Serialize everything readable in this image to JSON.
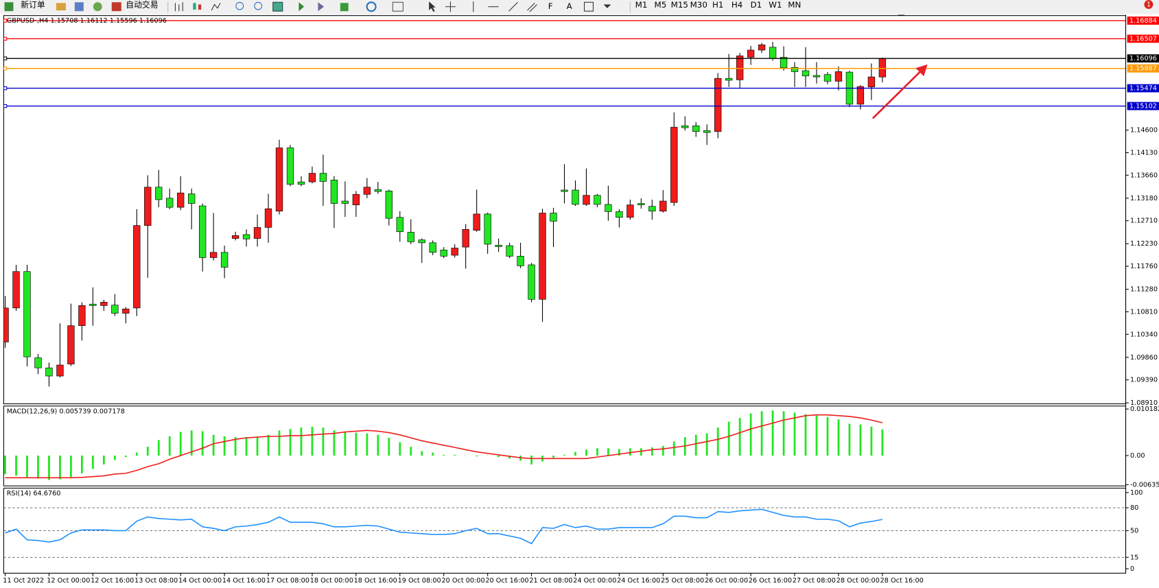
{
  "toolbar": {
    "new_order": "新订单",
    "auto_trading": "自动交易",
    "timeframes": [
      "M1",
      "M5",
      "M15",
      "M30",
      "H1",
      "H4",
      "D1",
      "W1",
      "MN"
    ],
    "badge": "1"
  },
  "chart_data": [
    {
      "type": "candlestick",
      "title": "GBPUSD-,H4  1.15708 1.16112 1.15596 1.16096",
      "up_color": "#ee1c1c",
      "down_color": "#22e622",
      "wick_color": "#000000",
      "ylim": [
        1.0889,
        1.1699
      ],
      "yticks": [
        {
          "value": 1.0891,
          "label": "1.08910"
        },
        {
          "value": 1.0939,
          "label": "1.09390"
        },
        {
          "value": 1.0986,
          "label": "1.09860"
        },
        {
          "value": 1.1034,
          "label": "1.10340"
        },
        {
          "value": 1.1081,
          "label": "1.10810"
        },
        {
          "value": 1.1128,
          "label": "1.11280"
        },
        {
          "value": 1.1176,
          "label": "1.11760"
        },
        {
          "value": 1.1223,
          "label": "1.12230"
        },
        {
          "value": 1.1271,
          "label": "1.12710"
        },
        {
          "value": 1.1318,
          "label": "1.13180"
        },
        {
          "value": 1.1366,
          "label": "1.13660"
        },
        {
          "value": 1.1413,
          "label": "1.14130"
        },
        {
          "value": 1.146,
          "label": "1.14600"
        }
      ],
      "levels": [
        {
          "value": 1.16884,
          "color": "#ff0000"
        },
        {
          "value": 1.16507,
          "color": "#ff0000"
        },
        {
          "value": 1.16096,
          "color": "#000000"
        },
        {
          "value": 1.15887,
          "color": "#ff9900"
        },
        {
          "value": 1.15474,
          "color": "#0000cc"
        },
        {
          "value": 1.15102,
          "color": "#0000cc"
        }
      ],
      "categories": [
        "11 Oct 2022",
        null,
        null,
        null,
        "12 Oct 00:00",
        null,
        null,
        null,
        "12 Oct 16:00",
        null,
        null,
        null,
        "13 Oct 08:00",
        null,
        null,
        null,
        "14 Oct 00:00",
        null,
        null,
        null,
        "14 Oct 16:00",
        null,
        null,
        null,
        "17 Oct 08:00",
        null,
        null,
        null,
        "18 Oct 00:00",
        null,
        null,
        null,
        "18 Oct 16:00",
        null,
        null,
        null,
        "19 Oct 08:00",
        null,
        null,
        null,
        "20 Oct 00:00",
        null,
        null,
        null,
        "20 Oct 16:00",
        null,
        null,
        null,
        "21 Oct 08:00",
        null,
        null,
        null,
        "24 Oct 00:00",
        null,
        null,
        null,
        "24 Oct 16:00",
        null,
        null,
        null,
        "25 Oct 08:00",
        null,
        null,
        null,
        "26 Oct 00:00",
        null,
        null,
        null,
        "26 Oct 16:00",
        null,
        null,
        null,
        "27 Oct 08:00",
        null,
        null,
        null,
        "28 Oct 00:00",
        null,
        null,
        null,
        "28 Oct 16:00"
      ],
      "open": [
        1.1018,
        1.1089,
        1.1165,
        1.0985,
        1.0964,
        1.0947,
        1.0972,
        1.1052,
        1.1097,
        1.1094,
        1.1095,
        1.1078,
        1.1089,
        1.1261,
        1.1341,
        1.1318,
        1.1299,
        1.1327,
        1.1302,
        1.1194,
        1.1205,
        1.1234,
        1.1242,
        1.1234,
        1.1257,
        1.1291,
        1.1423,
        1.1352,
        1.1352,
        1.137,
        1.1356,
        1.1312,
        1.1304,
        1.1326,
        1.1336,
        1.1333,
        1.1278,
        1.1247,
        1.1231,
        1.1225,
        1.121,
        1.1199,
        1.1216,
        1.1251,
        1.1285,
        1.122,
        1.1219,
        1.1197,
        1.1179,
        1.1107,
        1.1287,
        1.1335,
        1.1335,
        1.1305,
        1.1324,
        1.1305,
        1.129,
        1.1278,
        1.1307,
        1.1301,
        1.1291,
        1.1309,
        1.1469,
        1.1469,
        1.1459,
        1.1457,
        1.1568,
        1.1565,
        1.1612,
        1.1627,
        1.1633,
        1.1612,
        1.1591,
        1.1584,
        1.1574,
        1.1576,
        1.1562,
        1.1581,
        1.1514,
        1.155,
        1.15708
      ],
      "high": [
        1.1114,
        1.1179,
        1.1179,
        1.0993,
        1.0975,
        1.1057,
        1.1098,
        1.1101,
        1.1132,
        1.1106,
        1.1118,
        1.1091,
        1.1295,
        1.1366,
        1.1377,
        1.1338,
        1.1364,
        1.1338,
        1.1307,
        1.1287,
        1.1219,
        1.1248,
        1.1253,
        1.1284,
        1.1327,
        1.144,
        1.1429,
        1.1364,
        1.1384,
        1.1409,
        1.1364,
        1.1353,
        1.1333,
        1.136,
        1.1352,
        1.1336,
        1.1291,
        1.1274,
        1.1234,
        1.123,
        1.1216,
        1.1222,
        1.1264,
        1.1336,
        1.1288,
        1.1234,
        1.1225,
        1.1225,
        1.1183,
        1.1296,
        1.1298,
        1.1389,
        1.1355,
        1.138,
        1.1327,
        1.1344,
        1.1295,
        1.1315,
        1.1318,
        1.1315,
        1.1335,
        1.1497,
        1.1489,
        1.1477,
        1.1472,
        1.1579,
        1.1619,
        1.1621,
        1.1636,
        1.1642,
        1.1644,
        1.1635,
        1.1602,
        1.1633,
        1.1602,
        1.1581,
        1.1593,
        1.1584,
        1.1554,
        1.1599,
        1.16112
      ],
      "low": [
        1.1006,
        1.1083,
        1.0967,
        1.0951,
        1.0925,
        1.0944,
        1.0968,
        1.1021,
        1.1052,
        1.1083,
        1.1072,
        1.1057,
        1.1072,
        1.1152,
        1.1299,
        1.1295,
        1.1293,
        1.1253,
        1.1165,
        1.1188,
        1.1151,
        1.123,
        1.1217,
        1.1217,
        1.1225,
        1.1284,
        1.1343,
        1.1343,
        1.1349,
        1.1302,
        1.1256,
        1.1279,
        1.1279,
        1.1318,
        1.1327,
        1.1261,
        1.1227,
        1.1222,
        1.1183,
        1.1199,
        1.1193,
        1.1194,
        1.1171,
        1.1248,
        1.1202,
        1.1206,
        1.1193,
        1.1172,
        1.1101,
        1.106,
        1.1216,
        1.1307,
        1.1302,
        1.1302,
        1.1299,
        1.1271,
        1.1257,
        1.1273,
        1.1296,
        1.1273,
        1.1288,
        1.1302,
        1.1459,
        1.1446,
        1.1429,
        1.1443,
        1.155,
        1.1547,
        1.1596,
        1.1621,
        1.1605,
        1.1584,
        1.155,
        1.155,
        1.1557,
        1.1556,
        1.1543,
        1.1508,
        1.1503,
        1.1523,
        1.15596
      ],
      "close": [
        1.1089,
        1.1165,
        1.0987,
        1.0964,
        1.0947,
        1.097,
        1.1052,
        1.1094,
        1.1094,
        1.1101,
        1.1078,
        1.1087,
        1.1261,
        1.1341,
        1.1315,
        1.1299,
        1.1329,
        1.1307,
        1.1194,
        1.1205,
        1.1174,
        1.124,
        1.1233,
        1.1257,
        1.1296,
        1.1423,
        1.1347,
        1.1347,
        1.137,
        1.1353,
        1.1307,
        1.1307,
        1.1326,
        1.1341,
        1.1332,
        1.1276,
        1.1248,
        1.1227,
        1.1225,
        1.1205,
        1.1197,
        1.1214,
        1.1253,
        1.1285,
        1.1222,
        1.1217,
        1.1197,
        1.1177,
        1.1107,
        1.1287,
        1.127,
        1.1332,
        1.1305,
        1.1324,
        1.1305,
        1.129,
        1.1278,
        1.1304,
        1.1304,
        1.1291,
        1.1312,
        1.1466,
        1.1465,
        1.1457,
        1.1455,
        1.1568,
        1.1564,
        1.1615,
        1.1627,
        1.1638,
        1.161,
        1.159,
        1.1582,
        1.1573,
        1.1571,
        1.1562,
        1.1582,
        1.1514,
        1.1551,
        1.1571,
        1.16096
      ]
    },
    {
      "type": "macd",
      "title": "MACD(12,26,9) 0.005739 0.007178",
      "ylim": [
        -0.00663,
        0.01083
      ],
      "yticks": [
        0.010182,
        {
          "value": 0,
          "label": "0.00"
        },
        -0.006357
      ],
      "series": [
        {
          "style": "bar",
          "color": "#22e622",
          "values": [
            -0.00404,
            -0.00436,
            -0.00469,
            -0.00501,
            -0.00533,
            -0.00517,
            -0.00469,
            -0.00388,
            -0.00291,
            -0.00194,
            -0.00097,
            -0.00032,
            0.00065,
            0.00194,
            0.00339,
            0.0042,
            0.00517,
            0.0055,
            0.00533,
            0.00453,
            0.0042,
            0.00404,
            0.00404,
            0.00404,
            0.00453,
            0.0055,
            0.00582,
            0.00614,
            0.0063,
            0.00614,
            0.0055,
            0.00517,
            0.00501,
            0.00485,
            0.00453,
            0.00388,
            0.00291,
            0.00194,
            0.00097,
            0.00065,
            0.00016,
            0.00016,
            -5e-05,
            -0.00016,
            5e-05,
            -0.00032,
            -0.00065,
            -0.00113,
            -0.00194,
            -0.00129,
            -0.00048,
            0.00016,
            0.00081,
            0.00129,
            0.00162,
            0.00162,
            0.00145,
            0.00162,
            0.00162,
            0.00178,
            0.0021,
            0.00307,
            0.00404,
            0.00453,
            0.00485,
            0.00614,
            0.00743,
            0.00824,
            0.00921,
            0.0097,
            0.00986,
            0.0097,
            0.00937,
            0.00905,
            0.00873,
            0.0084,
            0.00792,
            0.00695,
            0.00679,
            0.0063,
            0.005739
          ]
        },
        {
          "style": "line",
          "color": "#ee1c1c",
          "values": [
            -0.00485,
            -0.00485,
            -0.00485,
            -0.00485,
            -0.00485,
            -0.00485,
            -0.00485,
            -0.00477,
            -0.00461,
            -0.00444,
            -0.00404,
            -0.00388,
            -0.00323,
            -0.00242,
            -0.00178,
            -0.00081,
            0,
            0.00081,
            0.00162,
            0.00259,
            0.00307,
            0.00355,
            0.00388,
            0.00404,
            0.0042,
            0.0042,
            0.00436,
            0.00436,
            0.00453,
            0.00469,
            0.00485,
            0.00517,
            0.00533,
            0.0055,
            0.00533,
            0.00501,
            0.00453,
            0.00388,
            0.00323,
            0.00275,
            0.00226,
            0.00178,
            0.00129,
            0.00081,
            0.00048,
            0.00016,
            -0.00016,
            -0.00048,
            -0.00065,
            -0.00065,
            -0.00065,
            -0.00065,
            -0.00065,
            -0.00065,
            -0.00032,
            0,
            0.00032,
            0.00065,
            0.00097,
            0.00129,
            0.00145,
            0.00178,
            0.0021,
            0.00259,
            0.00307,
            0.00355,
            0.0042,
            0.00501,
            0.00582,
            0.00646,
            0.00711,
            0.00776,
            0.00824,
            0.00873,
            0.00889,
            0.00889,
            0.00873,
            0.00856,
            0.00824,
            0.00776,
            0.007178
          ]
        }
      ]
    },
    {
      "type": "line",
      "title": "RSI(14) 64.6760",
      "ylim": [
        -5.8,
        105.8
      ],
      "yticks": [
        100,
        80,
        50,
        15,
        0
      ],
      "levels": [
        80,
        50,
        15
      ],
      "series": [
        {
          "color": "#1e90ff",
          "values": [
            47,
            52,
            38,
            37,
            35,
            38,
            47,
            51,
            51,
            51,
            50,
            50,
            62.5,
            68,
            66,
            65,
            64,
            65,
            55,
            53,
            50,
            55,
            56,
            58,
            61,
            68,
            61,
            61,
            61,
            59,
            55,
            55,
            56,
            57,
            56,
            52,
            48,
            47,
            46,
            45,
            45,
            46,
            50,
            53,
            46,
            46,
            43,
            40,
            33,
            54,
            53,
            58,
            54,
            56,
            52,
            52,
            54,
            54,
            54,
            54,
            59,
            69,
            69,
            67,
            67,
            75,
            74,
            76,
            77,
            78,
            74,
            70,
            68,
            68,
            65,
            65,
            63,
            55,
            60,
            62,
            64.676
          ]
        }
      ]
    }
  ]
}
